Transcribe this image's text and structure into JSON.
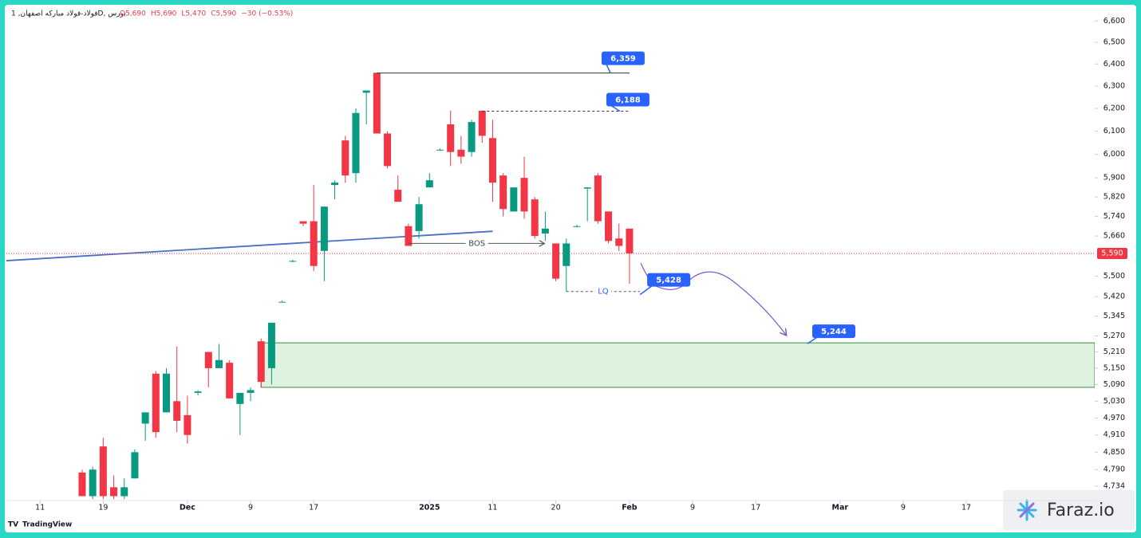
{
  "chart_data": {
    "type": "candlestick",
    "symbol": "فولاد-فولاد مبارکه اصفهان, 1D, بورس",
    "ohlc_header": [
      "O5,690",
      "H5,690",
      "L5,470",
      "C5,590",
      "−30 (−0.53%)"
    ],
    "brand": "TradingView",
    "watermark": "Faraz.io",
    "log_scale": true,
    "up_color": "#089981",
    "down_color": "#f23645",
    "ylim": [
      4680,
      6650
    ],
    "yticks": [
      {
        "value": 6600,
        "label": "6,600"
      },
      {
        "value": 6500,
        "label": "6,500"
      },
      {
        "value": 6400,
        "label": "6,400"
      },
      {
        "value": 6300,
        "label": "6,300"
      },
      {
        "value": 6200,
        "label": "6,200"
      },
      {
        "value": 6100,
        "label": "6,100"
      },
      {
        "value": 6000,
        "label": "6,000"
      },
      {
        "value": 5900,
        "label": "5,900"
      },
      {
        "value": 5820,
        "label": "5,820"
      },
      {
        "value": 5740,
        "label": "5,740"
      },
      {
        "value": 5660,
        "label": "5,660"
      },
      {
        "value": 5500,
        "label": "5,500"
      },
      {
        "value": 5420,
        "label": "5,420"
      },
      {
        "value": 5345,
        "label": "5,345"
      },
      {
        "value": 5270,
        "label": "5,270"
      },
      {
        "value": 5210,
        "label": "5,210"
      },
      {
        "value": 5150,
        "label": "5,150"
      },
      {
        "value": 5090,
        "label": "5,090"
      },
      {
        "value": 5030,
        "label": "5,030"
      },
      {
        "value": 4970,
        "label": "4,970"
      },
      {
        "value": 4910,
        "label": "4,910"
      },
      {
        "value": 4850,
        "label": "4,850"
      },
      {
        "value": 4790,
        "label": "4,790"
      },
      {
        "value": 4734,
        "label": "4,734"
      }
    ],
    "xlim": [
      -3.2,
      100.2
    ],
    "xticks": [
      {
        "value": 0,
        "label": "11"
      },
      {
        "value": 6,
        "label": "19"
      },
      {
        "value": 14,
        "label": "Dec"
      },
      {
        "value": 20,
        "label": "9"
      },
      {
        "value": 26,
        "label": "17"
      },
      {
        "value": 37,
        "label": "2025"
      },
      {
        "value": 43,
        "label": "11"
      },
      {
        "value": 49,
        "label": "20"
      },
      {
        "value": 56,
        "label": "Feb"
      },
      {
        "value": 62,
        "label": "9"
      },
      {
        "value": 68,
        "label": "17"
      },
      {
        "value": 76,
        "label": "Mar"
      },
      {
        "value": 82,
        "label": "9"
      },
      {
        "value": 88,
        "label": "17"
      }
    ],
    "candles": {
      "x": [
        4,
        5,
        6,
        7,
        8,
        9,
        10,
        11,
        12,
        13,
        14,
        15,
        16,
        17,
        18,
        19,
        20,
        21,
        22,
        23,
        24,
        25,
        26,
        27,
        28,
        29,
        30,
        31,
        32,
        33,
        34,
        35,
        36,
        37,
        38,
        39,
        40,
        41,
        42,
        43,
        44,
        45,
        46,
        47,
        48,
        49,
        50,
        51,
        52,
        53,
        54,
        55,
        56
      ],
      "open": [
        4780,
        4700,
        4870,
        4730,
        4700,
        4760,
        4950,
        5130,
        4990,
        5030,
        4980,
        5060,
        5210,
        5150,
        5170,
        5020,
        5060,
        5250,
        5150,
        5400,
        5560,
        5720,
        5720,
        5600,
        5870,
        6060,
        5920,
        6270,
        6360,
        6090,
        5850,
        5700,
        5680,
        5860,
        6020,
        6130,
        6020,
        6010,
        6190,
        6070,
        5910,
        5760,
        5900,
        5810,
        5670,
        5630,
        5540,
        5700,
        5855,
        5910,
        5760,
        5650,
        5690
      ],
      "high": [
        4790,
        4800,
        4900,
        4770,
        4760,
        4860,
        4990,
        5140,
        5150,
        5230,
        5050,
        5070,
        5210,
        5240,
        5180,
        5060,
        5080,
        5260,
        5320,
        5405,
        5565,
        5720,
        5870,
        5780,
        5890,
        6080,
        6200,
        6280,
        6360,
        6100,
        5910,
        5710,
        5820,
        5920,
        6025,
        6190,
        6080,
        6150,
        6190,
        6150,
        5920,
        5860,
        5990,
        5820,
        5760,
        5630,
        5650,
        5705,
        5860,
        5920,
        5760,
        5710,
        5690
      ],
      "low": [
        4700,
        4690,
        4690,
        4690,
        4690,
        4760,
        4890,
        4900,
        4990,
        4920,
        4880,
        5050,
        5080,
        5150,
        5040,
        4910,
        5030,
        5080,
        5090,
        5400,
        5555,
        5700,
        5520,
        5480,
        5810,
        5880,
        5880,
        6130,
        6090,
        5940,
        5800,
        5620,
        5650,
        5860,
        6015,
        5950,
        5960,
        5990,
        6050,
        5800,
        5740,
        5760,
        5730,
        5650,
        5640,
        5480,
        5440,
        5695,
        5720,
        5710,
        5630,
        5600,
        5470
      ],
      "close": [
        4700,
        4790,
        4700,
        4700,
        4730,
        4850,
        4990,
        4920,
        5130,
        4960,
        4910,
        5065,
        5150,
        5180,
        5040,
        5060,
        5070,
        5100,
        5320,
        5400,
        5560,
        5710,
        5540,
        5780,
        5880,
        5910,
        6180,
        6280,
        6090,
        5950,
        5800,
        5620,
        5790,
        5890,
        6020,
        6010,
        5990,
        6140,
        6080,
        5880,
        5770,
        5860,
        5760,
        5660,
        5690,
        5490,
        5630,
        5700,
        5860,
        5720,
        5640,
        5620,
        5590
      ]
    },
    "last_price": {
      "value": 5590,
      "label": "5,590"
    },
    "trendline": {
      "x": [
        -3.2,
        43
      ],
      "y": [
        5561,
        5679
      ]
    },
    "levels": [
      {
        "label": "6,359",
        "value": 6359,
        "x": [
          32,
          56
        ],
        "dashed": false
      },
      {
        "label": "6,188",
        "value": 6188,
        "x": [
          42,
          56
        ],
        "dashed": true
      }
    ],
    "bos": {
      "text": "BOS",
      "value": 5630,
      "x": [
        35,
        48
      ]
    },
    "lq": {
      "text": "LQ",
      "value": 5440,
      "x": [
        50,
        57
      ]
    },
    "lq_target": {
      "label": "5,428",
      "value": 5428,
      "x": 57
    },
    "zone": {
      "label": "5,244",
      "top": 5244,
      "bottom": 5080,
      "x_start": 21
    }
  }
}
